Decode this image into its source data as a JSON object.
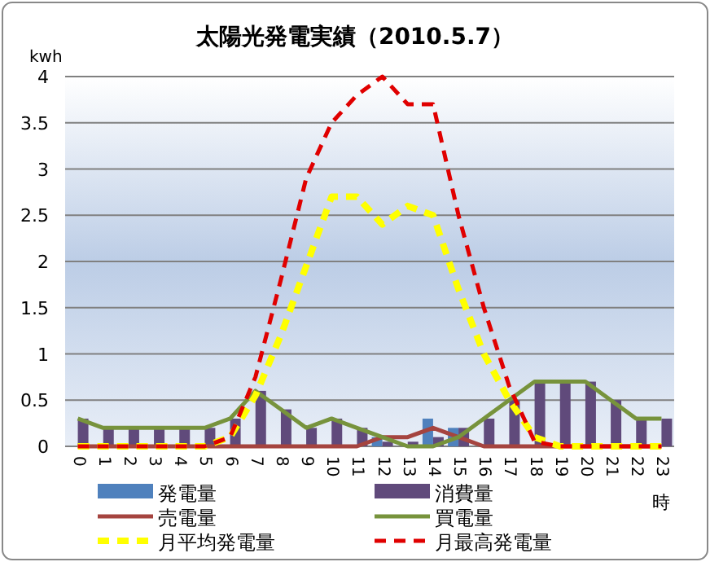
{
  "chart_data": {
    "type": "bar",
    "title": "太陽光発電実績（2010.5.7）",
    "ylabel": "kwh",
    "xlabel": "時",
    "categories": [
      "0",
      "1",
      "2",
      "3",
      "4",
      "5",
      "6",
      "7",
      "8",
      "9",
      "10",
      "11",
      "12",
      "13",
      "14",
      "15",
      "16",
      "17",
      "18",
      "19",
      "20",
      "21",
      "22",
      "23"
    ],
    "series": [
      {
        "name": "発電量",
        "color": "#4f81bd",
        "values": [
          0,
          0,
          0,
          0,
          0,
          0,
          0,
          0,
          0,
          0,
          0,
          0,
          0.1,
          null,
          0.3,
          0.2,
          0,
          0,
          0,
          0,
          0,
          0,
          0,
          0
        ]
      },
      {
        "name": "消費量",
        "color": "#604a7b",
        "values": [
          0.3,
          0.2,
          0.2,
          0.2,
          0.2,
          0.2,
          0.3,
          0.6,
          0.4,
          0.2,
          0.3,
          0.2,
          0.05,
          0.05,
          0.1,
          0.2,
          0.3,
          0.5,
          0.7,
          0.7,
          0.7,
          0.5,
          0.3,
          0.3
        ]
      },
      {
        "name": "売電量",
        "type": "line",
        "line_style": "solid",
        "color": "#a5443f",
        "values": [
          0,
          0,
          0,
          0,
          0,
          0,
          0,
          0,
          0,
          0,
          0,
          0,
          0.1,
          0.1,
          0.2,
          0.1,
          0,
          0,
          0,
          0,
          0,
          0,
          0,
          0
        ]
      },
      {
        "name": "買電量",
        "type": "line",
        "line_style": "solid",
        "color": "#77933c",
        "values": [
          0.3,
          0.2,
          0.2,
          0.2,
          0.2,
          0.2,
          0.3,
          0.6,
          0.4,
          0.2,
          0.3,
          0.2,
          0.1,
          0,
          0,
          0.1,
          0.3,
          0.5,
          0.7,
          0.7,
          0.7,
          0.5,
          0.3,
          0.3
        ]
      },
      {
        "name": "月平均発電量",
        "type": "line",
        "line_style": "dashed",
        "color": "#ffff00",
        "values": [
          0,
          0,
          0,
          0,
          0,
          0,
          0.1,
          0.55,
          1.2,
          1.95,
          2.7,
          2.7,
          2.4,
          2.6,
          2.5,
          1.7,
          1.0,
          0.5,
          0.1,
          0,
          0,
          0,
          0,
          0
        ]
      },
      {
        "name": "月最高発電量",
        "type": "line",
        "line_style": "dashed",
        "color": "#e00000",
        "values": [
          0,
          0,
          0,
          0,
          0,
          0,
          0.1,
          0.75,
          1.8,
          2.9,
          3.5,
          3.8,
          4.0,
          3.7,
          3.7,
          2.5,
          1.5,
          0.65,
          0.05,
          0,
          0,
          0,
          0,
          0
        ]
      }
    ],
    "ylim": [
      0,
      4
    ],
    "yticks": [
      0,
      0.5,
      1,
      1.5,
      2,
      2.5,
      3,
      3.5,
      4
    ],
    "grid": "y",
    "legend": "bottom",
    "marker": "none"
  }
}
